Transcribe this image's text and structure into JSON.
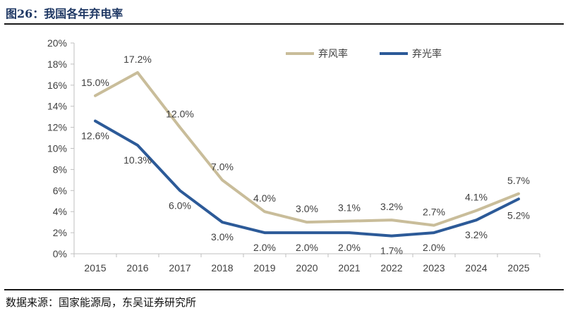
{
  "figure": {
    "title": "图26：我国各年弃电率",
    "source": "数据来源：国家能源局，东吴证券研究所"
  },
  "colors": {
    "wind": "#c9bd9a",
    "solar": "#2c5a98",
    "axis": "#bfbfbf",
    "text": "#404040"
  },
  "chart_data": {
    "type": "line",
    "title": "",
    "xlabel": "",
    "ylabel": "",
    "ylim": [
      0,
      20
    ],
    "ytick_step": 2,
    "ytick_suffix": "%",
    "grid": false,
    "legend": "top-right",
    "categories": [
      "2015",
      "2016",
      "2017",
      "2018",
      "2019",
      "2020",
      "2021",
      "2022",
      "2023",
      "2024",
      "2025"
    ],
    "series": [
      {
        "name": "弃风率",
        "color": "#c9bd9a",
        "values": [
          15.0,
          17.2,
          12.0,
          7.0,
          4.0,
          3.0,
          3.1,
          3.2,
          2.7,
          4.1,
          5.7
        ],
        "labels": [
          "15.0%",
          "17.2%",
          "12.0%",
          "7.0%",
          "4.0%",
          "3.0%",
          "3.1%",
          "3.2%",
          "2.7%",
          "4.1%",
          "5.7%"
        ]
      },
      {
        "name": "弃光率",
        "color": "#2c5a98",
        "values": [
          12.6,
          10.3,
          6.0,
          3.0,
          2.0,
          2.0,
          2.0,
          1.7,
          2.0,
          3.2,
          5.2
        ],
        "labels": [
          "12.6%",
          "10.3%",
          "6.0%",
          "3.0%",
          "2.0%",
          "2.0%",
          "2.0%",
          "1.7%",
          "2.0%",
          "3.2%",
          "5.2%"
        ]
      }
    ]
  }
}
